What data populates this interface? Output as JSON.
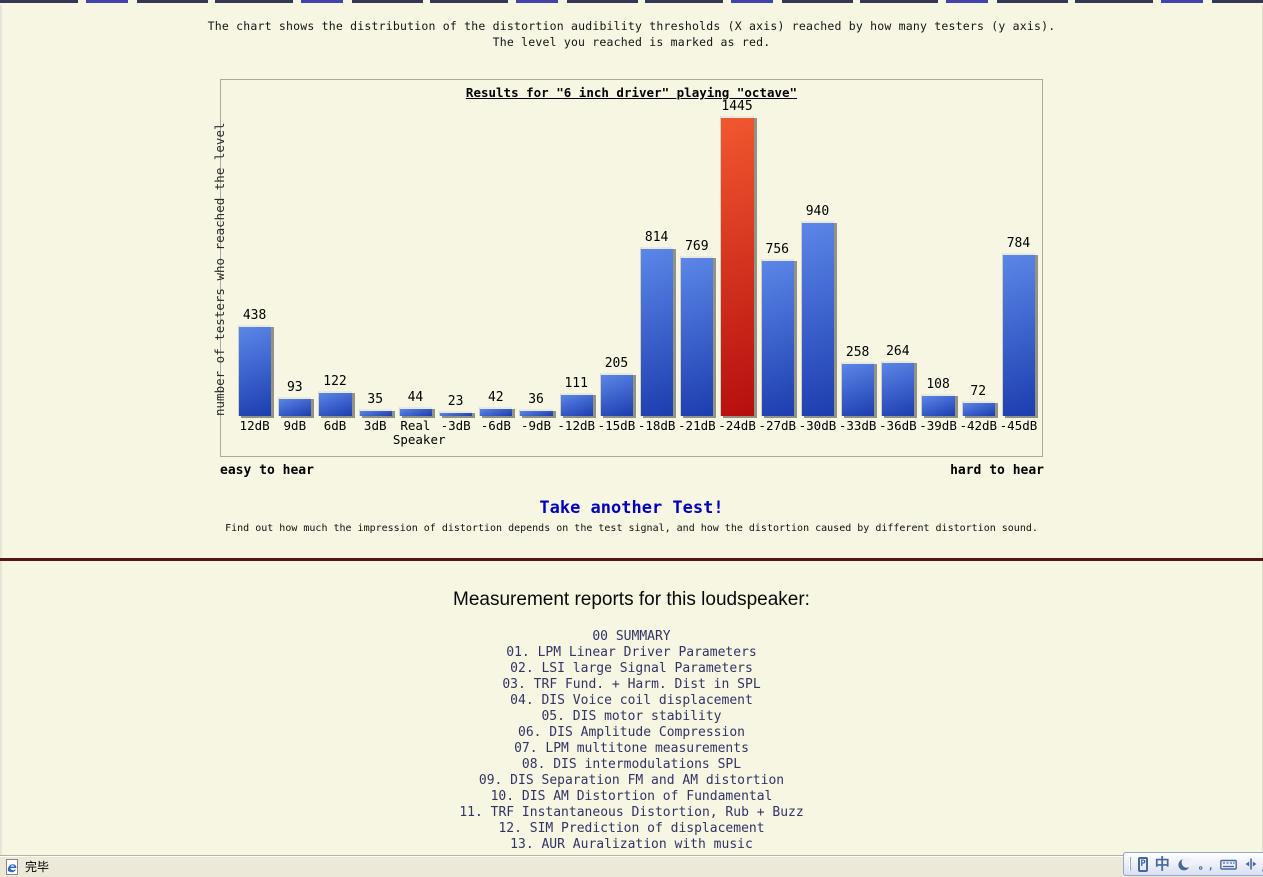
{
  "colors": {
    "page-bg": "#f6f6e2",
    "bar-blue-light": "#5b87e8",
    "bar-blue-dark": "#1c3dae",
    "bar-red-light": "#f1582f",
    "bar-red-dark": "#b60e0e",
    "divider": "#5a1414",
    "link-navy": "#333366",
    "cta-blue": "#0000bb",
    "statusbar-bg": "#ece9d8",
    "ime-blue": "#47689b"
  },
  "intro": {
    "line1": "The chart shows the distribution of the distortion audibility thresholds (X axis) reached by how many testers (y axis).",
    "line2": "The level you reached is marked as red."
  },
  "chart_data": {
    "type": "bar",
    "title": "Results for \"6 inch driver\" playing \"octave\"",
    "ylabel": "number of testers who reached the level",
    "xlabel": "",
    "categories": [
      "12dB",
      "9dB",
      "6dB",
      "3dB",
      "Real Speaker",
      "-3dB",
      "-6dB",
      "-9dB",
      "-12dB",
      "-15dB",
      "-18dB",
      "-21dB",
      "-24dB",
      "-27dB",
      "-30dB",
      "-33dB",
      "-36dB",
      "-39dB",
      "-42dB",
      "-45dB"
    ],
    "values": [
      438,
      93,
      122,
      35,
      44,
      23,
      42,
      36,
      111,
      205,
      814,
      769,
      1445,
      756,
      940,
      258,
      264,
      108,
      72,
      784
    ],
    "highlight_index": 12,
    "highlight_meaning": "The level you reached is marked as red",
    "ylim": [
      0,
      1445
    ],
    "grid": false,
    "legend": false,
    "value_labels": true
  },
  "captions": {
    "left": "easy to hear",
    "right": "hard to hear"
  },
  "cta": {
    "label": "Take another Test!",
    "subtext": "Find out how much the impression of distortion depends on the test signal, and how the distortion caused by different distortion sound."
  },
  "reports": {
    "heading": "Measurement reports for this loudspeaker:",
    "links": [
      "00 SUMMARY",
      "01. LPM Linear Driver Parameters",
      "02. LSI large Signal Parameters",
      "03. TRF Fund. + Harm. Dist in SPL",
      "04. DIS Voice coil displacement",
      "05. DIS motor stability",
      "06. DIS Amplitude Compression",
      "07. LPM multitone measurements",
      "08. DIS intermodulations SPL",
      "09. DIS Separation FM and AM distortion",
      "10. DIS AM Distortion of Fundamental",
      "11. TRF Instantaneous Distortion, Rub + Buzz",
      "12. SIM Prediction of displacement",
      "13. AUR Auralization with music"
    ]
  },
  "statusbar": {
    "status_text": "完毕",
    "ime": {
      "lang_label": "中",
      "punct_label": "。,"
    }
  }
}
